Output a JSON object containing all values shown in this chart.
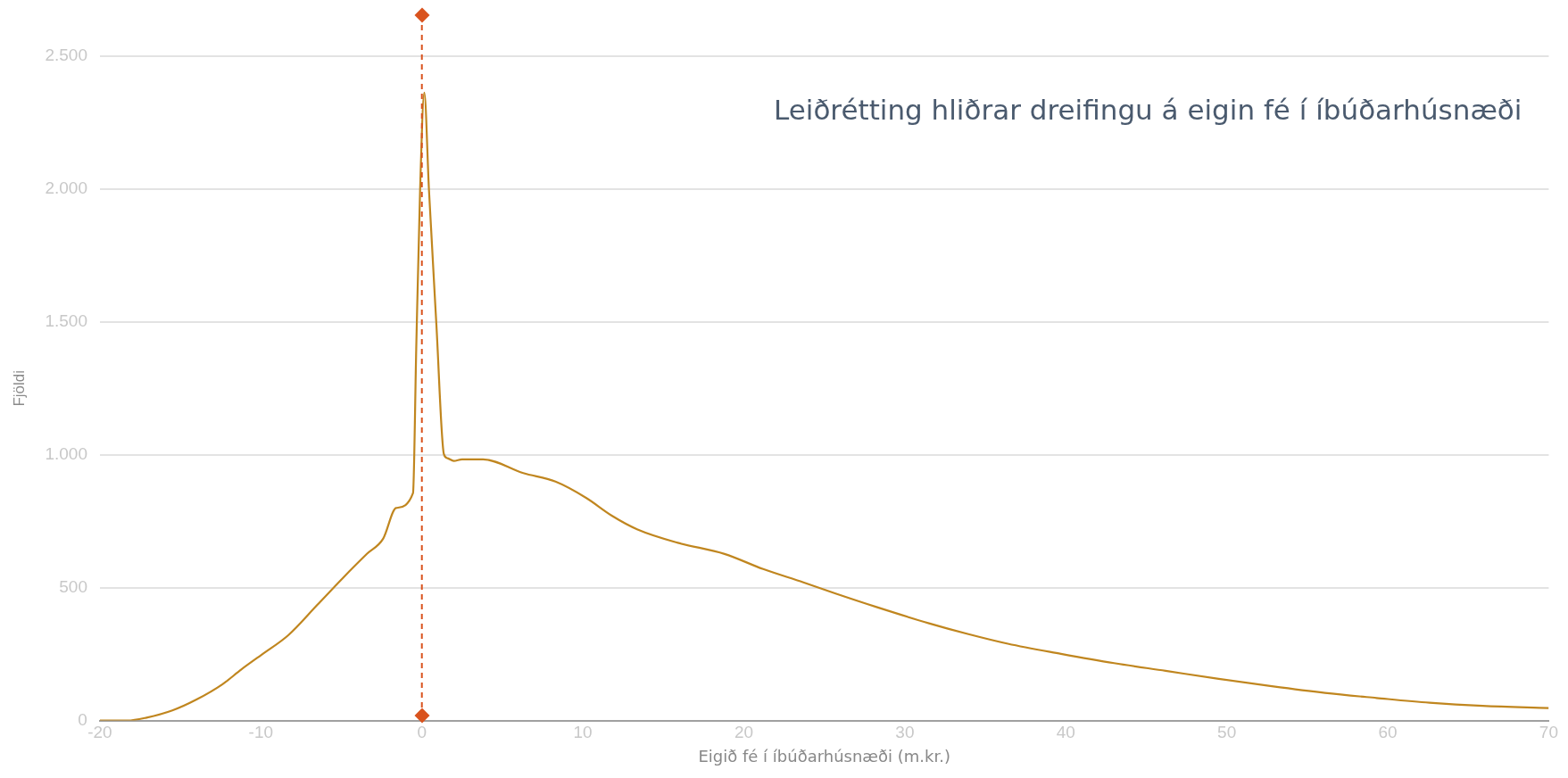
{
  "chart_data": {
    "type": "line",
    "title": "Leiðrétting hliðrar dreifingu á eigin fé í íbúðarhúsnæði",
    "xlabel": "Eigið fé í íbúðarhúsnæði (m.kr.)",
    "ylabel": "Fjöldi",
    "series": [
      {
        "color": "#c0861f",
        "x": [
          -20,
          -18.3,
          -17.1,
          -15.5,
          -14,
          -12.4,
          -11.2,
          -9.9,
          -8.3,
          -6.5,
          -4.9,
          -3.4,
          -2.4,
          -1.6,
          -0.55,
          -0.35,
          -0.11,
          0.15,
          0.44,
          0.9,
          1.37,
          1.6,
          1.98,
          2.5,
          3.8,
          6.3,
          8.3,
          10.2,
          11.8,
          13.4,
          15.9,
          18.8,
          21.2,
          23.7,
          25.7,
          28.2,
          31.5,
          33.9,
          36.4,
          39.7,
          43,
          46.2,
          49.5,
          52.8,
          56.1,
          59.3,
          62.6,
          65.9,
          70
        ],
        "values": [
          0,
          0,
          11,
          38,
          79,
          136,
          193,
          250,
          321,
          435,
          537,
          628,
          685,
          800,
          856,
          1399,
          1998,
          2363,
          1998,
          1492,
          1002,
          987,
          977,
          983,
          983,
          931,
          899,
          838,
          771,
          719,
          669,
          627,
          570,
          520,
          478,
          428,
          366,
          326,
          289,
          251,
          216,
          187,
          157,
          129,
          104,
          85,
          67,
          55,
          47
        ]
      }
    ],
    "xlim": [
      -20,
      70
    ],
    "xticks": [
      -20,
      -10,
      0,
      10,
      20,
      30,
      40,
      50,
      60,
      70
    ],
    "ylim": [
      0,
      2500
    ],
    "yticks": [
      0,
      {
        "value": 500,
        "label": "500"
      },
      {
        "value": 1000,
        "label": "1.000"
      },
      {
        "value": 1500,
        "label": "1.500"
      },
      {
        "value": 2000,
        "label": "2.000"
      },
      {
        "value": 2500,
        "label": "2.500"
      }
    ],
    "grid": "y",
    "marker": "none",
    "line_style": "solid",
    "ref_lines": [
      {
        "axis": "x",
        "value": 0,
        "color": "#d9531e",
        "line_style": "dashed"
      }
    ]
  }
}
